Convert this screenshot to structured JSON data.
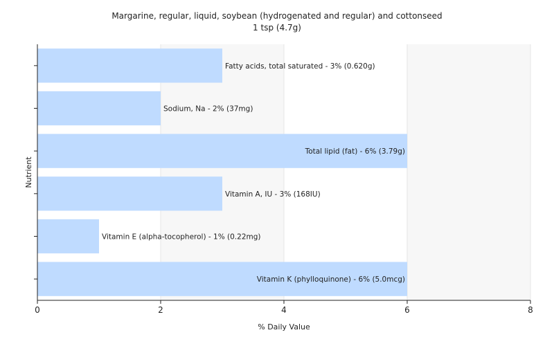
{
  "chart_data": {
    "type": "bar",
    "orientation": "horizontal",
    "title": "Margarine, regular, liquid, soybean (hydrogenated and regular) and cottonseed",
    "subtitle": "1 tsp (4.7g)",
    "xlabel": "% Daily Value",
    "ylabel": "Nutrient",
    "xlim": [
      0,
      8
    ],
    "xticks": [
      0,
      2,
      4,
      6,
      8
    ],
    "grid": true,
    "bar_color": "#bfdbff",
    "categories": [
      "Fatty acids, total saturated",
      "Sodium, Na",
      "Total lipid (fat)",
      "Vitamin A, IU",
      "Vitamin E (alpha-tocopherol)",
      "Vitamin K (phylloquinone)"
    ],
    "values": [
      3,
      2,
      6,
      3,
      1,
      6
    ],
    "labels": [
      "Fatty acids, total saturated - 3% (0.620g)",
      "Sodium, Na - 2% (37mg)",
      "Total lipid (fat) - 6% (3.79g)",
      "Vitamin A, IU - 3% (168IU)",
      "Vitamin E (alpha-tocopherol) - 1% (0.22mg)",
      "Vitamin K (phylloquinone) - 6% (5.0mcg)"
    ]
  }
}
